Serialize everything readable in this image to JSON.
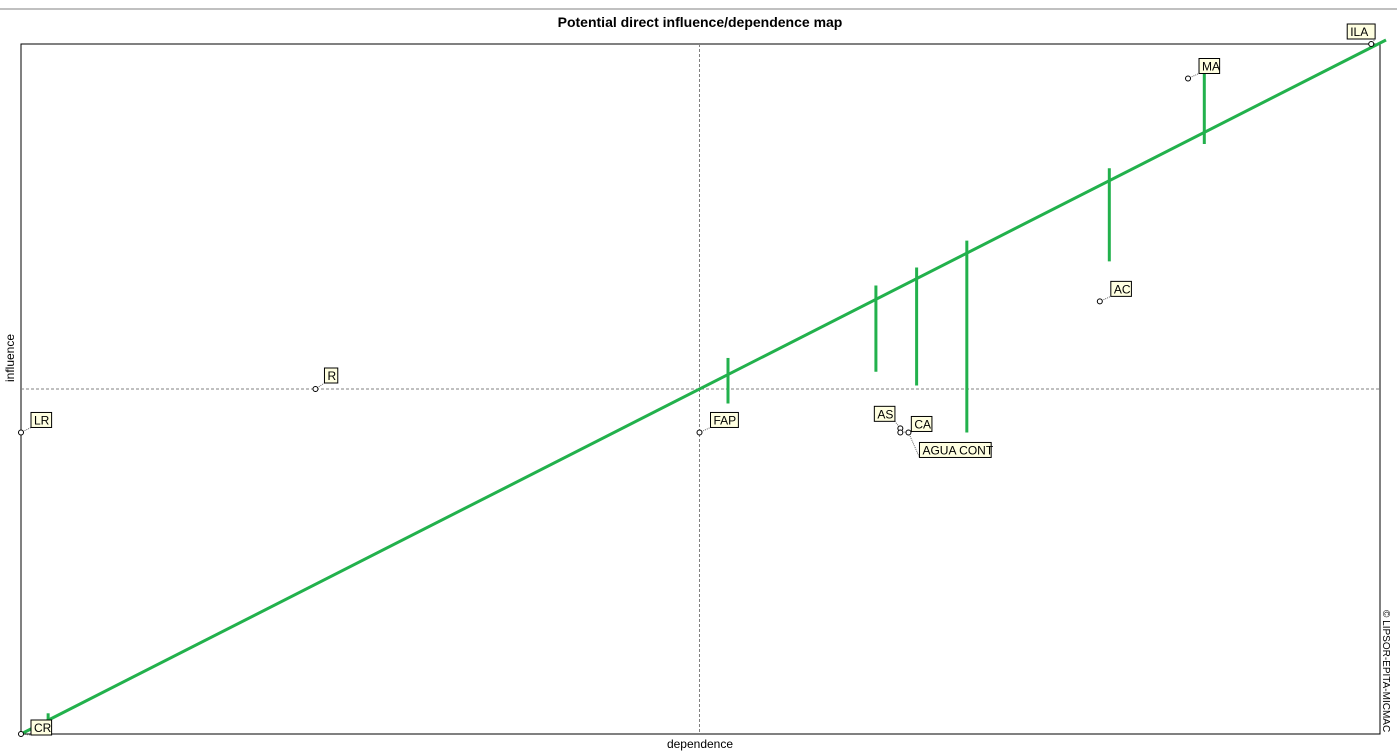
{
  "chart_data": {
    "type": "scatter",
    "title": "Potential direct influence/dependence map",
    "xlabel": "dependence",
    "ylabel": "influence",
    "credit": "© LIPSOR-EPITA-MICMAC",
    "xlim": [
      0,
      1
    ],
    "ylim": [
      0,
      1
    ],
    "grid": false,
    "crosshair": {
      "x": 0.5,
      "y": 0.5
    },
    "trend_line": {
      "x": [
        0.0,
        1.0
      ],
      "y": [
        0.0,
        1.0
      ],
      "color": "#22b14c"
    },
    "points": [
      {
        "label": "CR",
        "x": 0.0,
        "y": 0.0,
        "residual_to": 0.02
      },
      {
        "label": "LR",
        "x": 0.0,
        "y": 0.437
      },
      {
        "label": "R",
        "x": 0.217,
        "y": 0.5
      },
      {
        "label": "FAP",
        "x": 0.5,
        "y": 0.437,
        "residual_to": 0.543
      },
      {
        "label": "AS",
        "x": 0.648,
        "y": 0.443,
        "residual_to": 0.655
      },
      {
        "label": "CA",
        "x": 0.648,
        "y": 0.437,
        "residual_to": 0.68
      },
      {
        "label": "AGUA CONT",
        "x": 0.654,
        "y": 0.437,
        "residual_to": 0.712
      },
      {
        "label": "AC",
        "x": 0.795,
        "y": 0.627,
        "residual_to": 0.815
      },
      {
        "label": "MA",
        "x": 0.86,
        "y": 0.95,
        "residual_to": 0.855
      },
      {
        "label": "ILA",
        "x": 0.995,
        "y": 1.0
      }
    ],
    "label_box_color": "#ffffe1",
    "trend_color": "#22b14c"
  }
}
